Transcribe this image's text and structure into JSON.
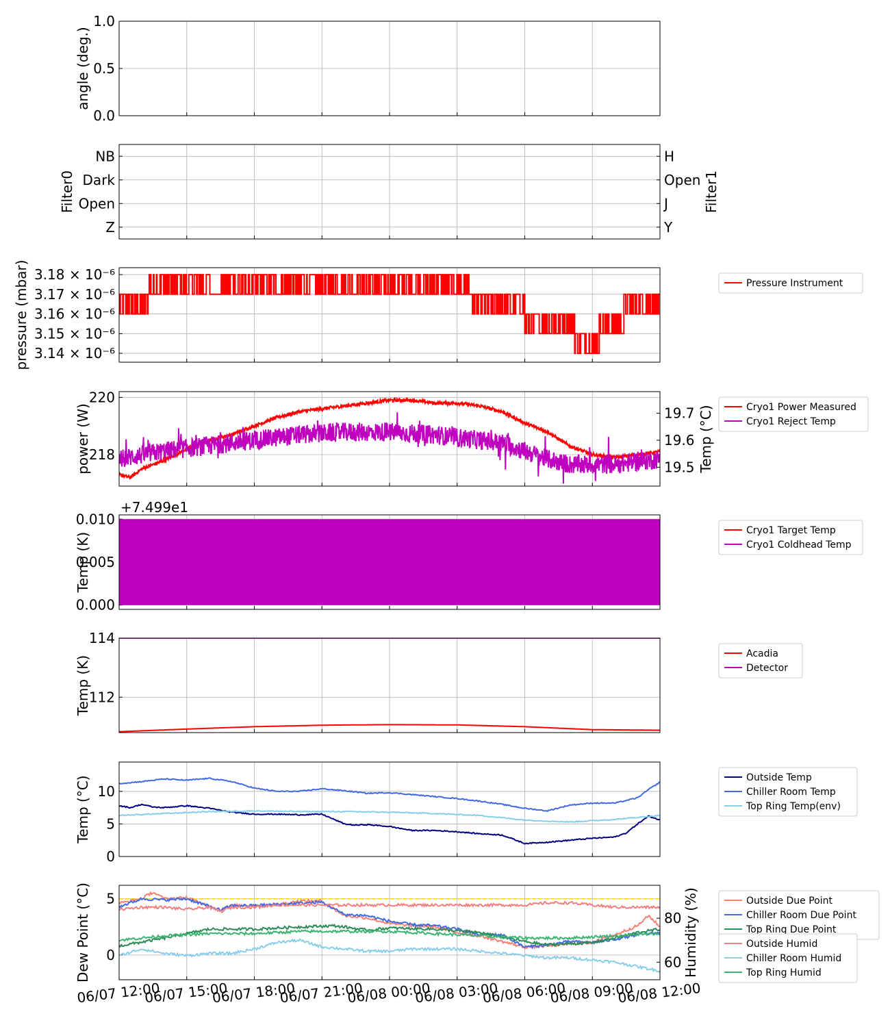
{
  "x_axis": {
    "ticks": [
      "06/07 12:00",
      "06/07 15:00",
      "06/07 18:00",
      "06/07 21:00",
      "06/08 00:00",
      "06/08 03:00",
      "06/08 06:00",
      "06/08 09:00",
      "06/08 12:00"
    ],
    "unit_hours": "hours since first tick",
    "range_hours": [
      0,
      24
    ]
  },
  "chart_data": [
    {
      "type": "line",
      "panel": "angle",
      "ylabel": "angle (deg.)",
      "ylim": [
        0,
        1
      ],
      "yticks": [
        {
          "v": 0,
          "t": "0.0"
        },
        {
          "v": 0.5,
          "t": "0.5"
        },
        {
          "v": 1,
          "t": "1.0"
        }
      ],
      "series": [],
      "grid": true
    },
    {
      "type": "line",
      "panel": "filter",
      "ylabel": "Filter0",
      "ylabel_color": "#ff0000",
      "ylabel_right": "Filter1",
      "ylabel_right_color": "#bf00bf",
      "ylim": [
        -0.5,
        3.5
      ],
      "yticks": [
        {
          "v": 0,
          "t": "Z"
        },
        {
          "v": 1,
          "t": "Open"
        },
        {
          "v": 2,
          "t": "Dark"
        },
        {
          "v": 3,
          "t": "NB"
        }
      ],
      "yticks_right": [
        {
          "v": 0,
          "t": "Y"
        },
        {
          "v": 1,
          "t": "J"
        },
        {
          "v": 2,
          "t": "Open"
        },
        {
          "v": 3,
          "t": "H"
        }
      ],
      "tick_color": "#ff0000",
      "tick_right_color": "#bf00bf",
      "series": [],
      "grid": true
    },
    {
      "type": "line",
      "panel": "pressure",
      "ylabel": "pressure (mbar)",
      "ylim": [
        3.1355,
        3.1835
      ],
      "yticks": [
        {
          "v": 3.14,
          "t": "3.14 × 10⁻⁶"
        },
        {
          "v": 3.15,
          "t": "3.15 × 10⁻⁶"
        },
        {
          "v": 3.16,
          "t": "3.16 × 10⁻⁶"
        },
        {
          "v": 3.17,
          "t": "3.17 × 10⁻⁶"
        },
        {
          "v": 3.18,
          "t": "3.18 × 10⁻⁶"
        }
      ],
      "series": [
        {
          "name": "Pressure Instrument",
          "color": "#ff0000",
          "style": "steps",
          "levels": [
            [
              0,
              3.16,
              3.17
            ],
            [
              1.3,
              3.17,
              3.17
            ],
            [
              1.3,
              3.17,
              3.18
            ],
            [
              4.1,
              3.17,
              3.18
            ],
            [
              4.1,
              3.17,
              3.17
            ],
            [
              4.5,
              3.17,
              3.17
            ],
            [
              4.5,
              3.17,
              3.18
            ],
            [
              15.6,
              3.17,
              3.18
            ],
            [
              15.6,
              3.16,
              3.17
            ],
            [
              18.0,
              3.16,
              3.17
            ],
            [
              18.0,
              3.15,
              3.16
            ],
            [
              20.2,
              3.14,
              3.15
            ],
            [
              21.3,
              3.14,
              3.15
            ],
            [
              21.3,
              3.15,
              3.16
            ],
            [
              22.4,
              3.15,
              3.16
            ],
            [
              22.4,
              3.16,
              3.17
            ],
            [
              24,
              3.16,
              3.17
            ]
          ]
        }
      ],
      "legend": [
        "Pressure Instrument"
      ],
      "grid": true
    },
    {
      "type": "line",
      "panel": "cryo_power",
      "ylabel": "power (W)",
      "ylabel_color": "#ff0000",
      "ylabel_right": "Temp (°C)",
      "ylabel_right_color": "#bf00bf",
      "ylim": [
        216.9,
        220.2
      ],
      "ylim_right": [
        19.43,
        19.78
      ],
      "yticks": [
        {
          "v": 218,
          "t": "218"
        },
        {
          "v": 220,
          "t": "220"
        }
      ],
      "yticks_right": [
        {
          "v": 19.5,
          "t": "19.5"
        },
        {
          "v": 19.6,
          "t": "19.6"
        },
        {
          "v": 19.7,
          "t": "19.7"
        }
      ],
      "series": [
        {
          "name": "Cryo1 Power Measured",
          "color": "#ff0000",
          "axis": "left",
          "x": [
            0,
            0.5,
            1,
            2,
            3,
            4,
            5,
            6,
            7,
            8,
            9,
            10,
            11,
            12,
            13,
            14,
            15,
            16,
            17,
            18,
            19,
            20,
            21,
            22,
            23,
            24
          ],
          "y": [
            217.3,
            217.2,
            217.5,
            217.8,
            218.2,
            218.5,
            218.7,
            219.0,
            219.3,
            219.5,
            219.6,
            219.7,
            219.8,
            219.9,
            219.9,
            219.8,
            219.8,
            219.7,
            219.5,
            219.1,
            218.8,
            218.3,
            218.0,
            217.9,
            218.0,
            218.1
          ]
        },
        {
          "name": "Cryo1 Reject Temp",
          "color": "#bf00bf",
          "axis": "right",
          "x": [
            0,
            2,
            4,
            6,
            8,
            10,
            12,
            14,
            16,
            17,
            18,
            19,
            20,
            21,
            22,
            23,
            24
          ],
          "y": [
            19.53,
            19.56,
            19.58,
            19.6,
            19.62,
            19.63,
            19.63,
            19.62,
            19.6,
            19.59,
            19.56,
            19.53,
            19.51,
            19.51,
            19.51,
            19.52,
            19.53
          ]
        }
      ],
      "legend": [
        "Cryo1 Power Measured",
        "Cryo1 Reject Temp"
      ],
      "grid": true
    },
    {
      "type": "line",
      "panel": "cryo_temp",
      "ylabel": "Temp (K)",
      "offset_text": "+7.499e1",
      "ylim": [
        -0.0005,
        0.0105
      ],
      "yticks": [
        {
          "v": 0,
          "t": "0.000"
        },
        {
          "v": 0.005,
          "t": "0.005"
        },
        {
          "v": 0.01,
          "t": "0.010"
        }
      ],
      "series": [
        {
          "name": "Cryo1 Target Temp",
          "color": "#ff0000",
          "values": []
        },
        {
          "name": "Cryo1 Coldhead Temp",
          "color": "#bf00bf",
          "band": [
            0,
            0.01
          ]
        }
      ],
      "legend": [
        "Cryo1 Target Temp",
        "Cryo1 Coldhead Temp"
      ],
      "grid": true
    },
    {
      "type": "line",
      "panel": "detector",
      "ylabel": "Temp (K)",
      "ylim": [
        110.8,
        114.0
      ],
      "yticks": [
        {
          "v": 112,
          "t": "112"
        },
        {
          "v": 114,
          "t": "114"
        }
      ],
      "series": [
        {
          "name": "Acadia",
          "color": "#ff0000",
          "x": [
            0,
            3,
            6,
            9,
            12,
            15,
            18,
            21,
            24
          ],
          "y": [
            110.83,
            110.92,
            111.0,
            111.05,
            111.07,
            111.06,
            111.0,
            110.9,
            110.88
          ]
        },
        {
          "name": "Detector",
          "color": "#bf00bf",
          "x": [
            0,
            24
          ],
          "y": [
            114.0,
            114.0
          ]
        }
      ],
      "legend": [
        "Acadia",
        "Detector"
      ],
      "grid": true
    },
    {
      "type": "line",
      "panel": "weather_temp",
      "ylabel": "Temp (°C)",
      "ylim": [
        0,
        14.5
      ],
      "yticks": [
        {
          "v": 0,
          "t": "0"
        },
        {
          "v": 5,
          "t": "5"
        },
        {
          "v": 10,
          "t": "10"
        }
      ],
      "series": [
        {
          "name": "Outside Temp",
          "color": "#00007f",
          "x": [
            0,
            0.5,
            1,
            1.5,
            2,
            3,
            4,
            5,
            6,
            7,
            8,
            9,
            10,
            10.5,
            11,
            12,
            13,
            14,
            15,
            16,
            17,
            18,
            19,
            20,
            21,
            22,
            22.5,
            23,
            23.5,
            24
          ],
          "y": [
            7.8,
            7.5,
            8.0,
            7.6,
            7.5,
            7.8,
            7.4,
            6.8,
            6.5,
            6.5,
            6.4,
            6.5,
            5.0,
            4.8,
            4.9,
            4.6,
            4.0,
            4.0,
            3.8,
            3.5,
            3.3,
            2.0,
            2.2,
            2.5,
            2.8,
            3.0,
            3.6,
            5.0,
            6.2,
            5.6
          ]
        },
        {
          "name": "Chiller Room Temp",
          "color": "#4169e1",
          "x": [
            0,
            1,
            2,
            3,
            4,
            5,
            6,
            7,
            8,
            9,
            10,
            11,
            12,
            13,
            14,
            15,
            16,
            17,
            18,
            19,
            20,
            21,
            22,
            23,
            23.5,
            24
          ],
          "y": [
            11.2,
            11.5,
            11.9,
            11.7,
            12.0,
            11.5,
            10.5,
            10.0,
            10.0,
            10.4,
            10.1,
            9.7,
            9.8,
            9.5,
            9.2,
            8.9,
            8.5,
            8.0,
            7.4,
            7.0,
            7.9,
            8.2,
            8.2,
            9.0,
            10.3,
            11.4
          ]
        },
        {
          "name": "Top Ring Temp(env)",
          "color": "#87ceeb",
          "x": [
            0,
            2,
            4,
            6,
            8,
            10,
            12,
            14,
            16,
            18,
            20,
            22,
            24
          ],
          "y": [
            6.3,
            6.6,
            6.9,
            7.0,
            6.9,
            6.9,
            6.8,
            6.6,
            6.3,
            5.6,
            5.3,
            5.7,
            6.3
          ]
        }
      ],
      "legend": [
        "Outside Temp",
        "Chiller Room Temp",
        "Top Ring Temp(env)"
      ],
      "grid": true
    },
    {
      "type": "line",
      "panel": "dewpoint",
      "ylabel": "Dew Point (°C)",
      "ylabel_right": "Humidity (%)",
      "ylim": [
        -2.2,
        6.2
      ],
      "ylim_right": [
        52,
        95
      ],
      "yticks": [
        {
          "v": 0,
          "t": "0"
        },
        {
          "v": 5,
          "t": "5"
        }
      ],
      "yticks_right": [
        {
          "v": 60,
          "t": "60"
        },
        {
          "v": 80,
          "t": "80"
        }
      ],
      "hline": {
        "y": 5.0,
        "color": "#ffd700"
      },
      "series": [
        {
          "name": "Outside Due Point",
          "color": "#fa8072",
          "axis": "left",
          "x": [
            0,
            1,
            1.5,
            2,
            3,
            4.5,
            5,
            6,
            7,
            8,
            9,
            10,
            11,
            12,
            13,
            14,
            15,
            16,
            17,
            18,
            19,
            20,
            21,
            22,
            23,
            23.5,
            24
          ],
          "y": [
            4.6,
            5.0,
            5.6,
            5.0,
            5.1,
            4.0,
            4.4,
            4.4,
            4.5,
            4.8,
            4.8,
            3.5,
            3.3,
            2.8,
            2.6,
            2.5,
            2.0,
            1.7,
            1.2,
            0.7,
            0.8,
            1.0,
            1.1,
            1.8,
            2.6,
            3.5,
            2.5
          ]
        },
        {
          "name": "Chiller Room Due Point",
          "color": "#4169e1",
          "axis": "left",
          "x": [
            0,
            1,
            2,
            3,
            4.5,
            5,
            6,
            7,
            8,
            9,
            10,
            11,
            12,
            13,
            14,
            15,
            16,
            17,
            18,
            19,
            20,
            21,
            22,
            23,
            24
          ],
          "y": [
            4.3,
            5.0,
            4.9,
            5.0,
            4.0,
            4.4,
            4.4,
            4.5,
            4.6,
            4.7,
            3.6,
            3.5,
            3.0,
            2.7,
            2.6,
            2.3,
            1.8,
            1.8,
            0.7,
            0.9,
            1.2,
            1.1,
            1.4,
            1.8,
            2.0
          ]
        },
        {
          "name": "Top Ring Due Point",
          "color": "#2e8b57",
          "axis": "left",
          "x": [
            0,
            2,
            4,
            6,
            8,
            9.5,
            10,
            11,
            12,
            14,
            16,
            18,
            19,
            20,
            21,
            22,
            23,
            24
          ],
          "y": [
            0.8,
            1.5,
            2.3,
            2.3,
            2.5,
            2.6,
            2.5,
            2.2,
            2.4,
            2.3,
            2.0,
            1.2,
            0.9,
            1.0,
            1.1,
            1.5,
            2.0,
            2.3
          ]
        },
        {
          "name": "Outside Humid",
          "color": "#f08080",
          "axis": "right",
          "x": [
            0,
            1,
            2,
            3,
            4,
            4.5,
            5,
            6,
            7,
            8,
            9,
            10,
            11,
            12,
            13,
            14,
            15,
            16,
            17,
            18,
            19,
            20,
            21,
            22,
            23,
            24
          ],
          "y": [
            84,
            85,
            85,
            84,
            85,
            83,
            85,
            85,
            86,
            86,
            86,
            86,
            86,
            86,
            86,
            86,
            86,
            86,
            86,
            86,
            87,
            87,
            86,
            85,
            85,
            85
          ]
        },
        {
          "name": "Chiller Room Humid",
          "color": "#87ceeb",
          "axis": "right",
          "x": [
            0,
            1,
            2,
            3,
            4,
            5,
            6,
            7,
            8,
            9,
            10,
            11,
            12,
            13,
            14,
            15,
            16,
            17,
            18,
            19,
            20,
            21,
            22,
            23,
            24
          ],
          "y": [
            63,
            66,
            64,
            63,
            64,
            64,
            66,
            69,
            70,
            67,
            66,
            65,
            65,
            66,
            66,
            66,
            65,
            64,
            63,
            62,
            62,
            61,
            60,
            58,
            56
          ]
        },
        {
          "name": "Top Ring Humid",
          "color": "#3cb371",
          "axis": "right",
          "x": [
            0,
            2,
            4,
            6,
            8,
            10,
            12,
            14,
            16,
            18,
            20,
            22,
            24
          ],
          "y": [
            70,
            72,
            73,
            73,
            74,
            74,
            74,
            73,
            72,
            71,
            71,
            72,
            73
          ]
        }
      ],
      "legend": [
        "Outside Due Point",
        "Chiller Room Due Point",
        "Top Ring Due Point"
      ],
      "legend2": [
        "Outside Humid",
        "Chiller Room Humid",
        "Top Ring Humid"
      ],
      "grid": true
    }
  ]
}
